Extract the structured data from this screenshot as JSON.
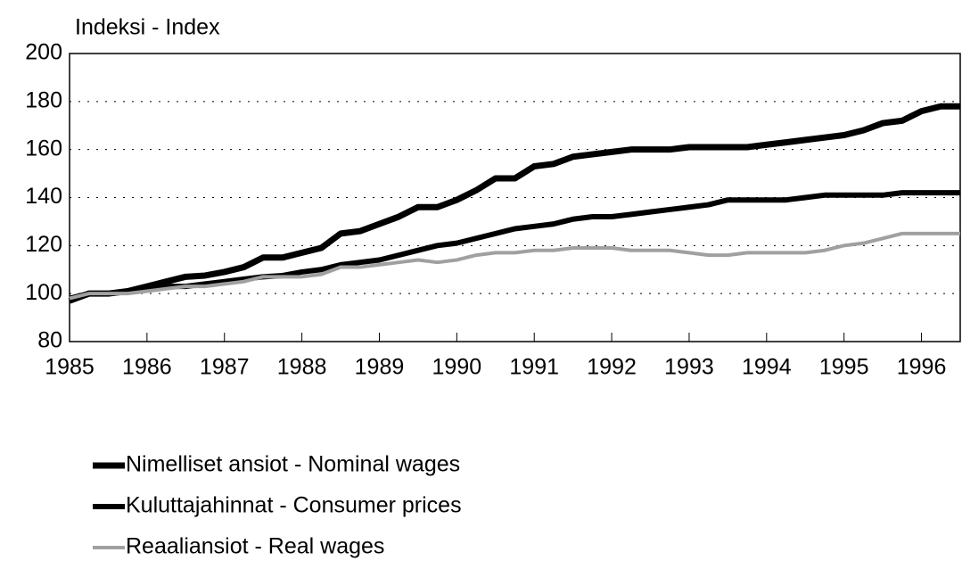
{
  "chart_data": {
    "type": "line",
    "title": "Indeksi - Index",
    "x": [
      1985,
      1985.25,
      1985.5,
      1985.75,
      1986,
      1986.25,
      1986.5,
      1986.75,
      1987,
      1987.25,
      1987.5,
      1987.75,
      1988,
      1988.25,
      1988.5,
      1988.75,
      1989,
      1989.25,
      1989.5,
      1989.75,
      1990,
      1990.25,
      1990.5,
      1990.75,
      1991,
      1991.25,
      1991.5,
      1991.75,
      1992,
      1992.25,
      1992.5,
      1992.75,
      1993,
      1993.25,
      1993.5,
      1993.75,
      1994,
      1994.25,
      1994.5,
      1994.75,
      1995,
      1995.25,
      1995.5,
      1995.75,
      1996,
      1996.25,
      1996.5
    ],
    "series": [
      {
        "name": "Nimelliset ansiot - Nominal wages",
        "color": "#000000",
        "values": [
          97,
          100,
          100,
          101,
          103,
          105,
          107,
          107.5,
          109,
          111,
          115,
          115,
          117,
          119,
          125,
          126,
          129,
          132,
          136,
          136,
          139,
          143,
          148,
          148,
          153,
          154,
          157,
          158,
          159,
          160,
          160,
          160,
          161,
          161,
          161,
          161,
          162,
          163,
          164,
          165,
          166,
          168,
          171,
          172,
          176,
          178,
          178
        ]
      },
      {
        "name": "Kuluttajahinnat - Consumer prices",
        "color": "#000000",
        "values": [
          98,
          100,
          100,
          101,
          102,
          103,
          103,
          104,
          105,
          106,
          107,
          107.5,
          109,
          110,
          112,
          113,
          114,
          116,
          118,
          120,
          121,
          123,
          125,
          127,
          128,
          129,
          131,
          132,
          132,
          133,
          134,
          135,
          136,
          137,
          139,
          139,
          139,
          139,
          140,
          141,
          141,
          141,
          141,
          142,
          142,
          142,
          142
        ]
      },
      {
        "name": "Reaaliansiot - Real wages",
        "color": "#a0a0a0",
        "values": [
          98,
          100,
          100,
          100,
          101,
          102,
          103,
          103,
          104,
          105,
          107,
          107,
          107,
          108,
          111,
          111,
          112,
          113,
          114,
          113,
          114,
          116,
          117,
          117,
          118,
          118,
          119,
          119,
          119,
          118,
          118,
          118,
          117,
          116,
          116,
          117,
          117,
          117,
          117,
          118,
          120,
          121,
          123,
          125,
          125,
          125,
          125
        ]
      }
    ],
    "xlim": [
      1985,
      1996.5
    ],
    "xticks": [
      1985,
      1986,
      1987,
      1988,
      1989,
      1990,
      1991,
      1992,
      1993,
      1994,
      1995,
      1996
    ],
    "ylim": [
      80,
      200
    ],
    "yticks": [
      80,
      100,
      120,
      140,
      160,
      180,
      200
    ],
    "grid": true
  }
}
